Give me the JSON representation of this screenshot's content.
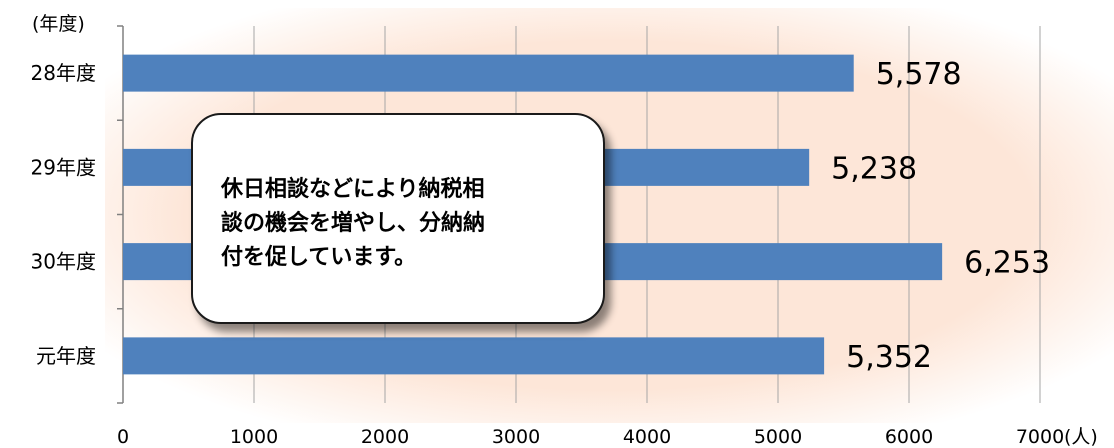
{
  "chart_data": {
    "type": "bar",
    "orientation": "horizontal",
    "categories": [
      "28年度",
      "29年度",
      "30年度",
      "元年度"
    ],
    "values": [
      5578,
      5238,
      6253,
      5352
    ],
    "value_labels": [
      "5,578",
      "5,238",
      "6,253",
      "5,352"
    ],
    "xlim": [
      0,
      7000
    ],
    "xticks": [
      "0",
      "1000",
      "2000",
      "3000",
      "4000",
      "5000",
      "6000",
      "7000"
    ],
    "xticks_values": [
      0,
      1000,
      2000,
      3000,
      4000,
      5000,
      6000,
      7000
    ],
    "y_unit_label": "(年度)",
    "x_unit_label": "(人)",
    "grid": true,
    "colors": {
      "bar": "#4f81bd",
      "background": "#fde5d7",
      "grid": "#a6a6a6"
    }
  },
  "callout": {
    "lines": [
      "休日相談などにより納税相",
      "談の機会を増やし、分納納",
      "付を促しています。"
    ]
  }
}
